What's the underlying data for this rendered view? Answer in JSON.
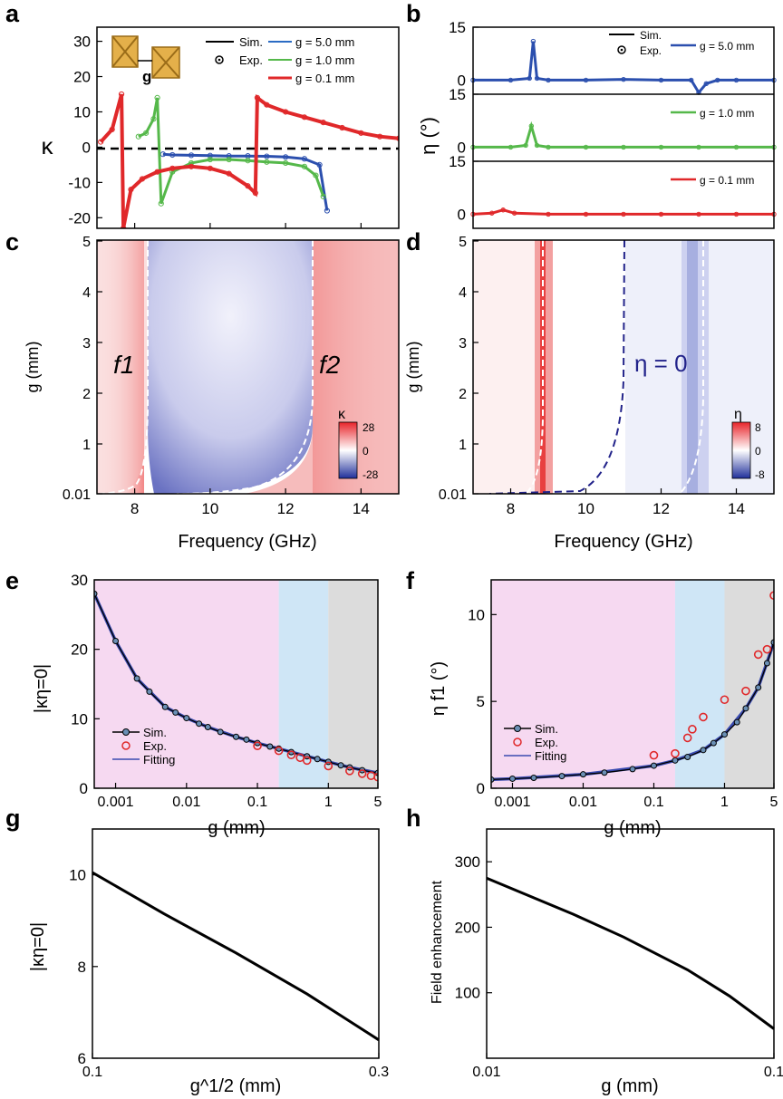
{
  "figure": {
    "panel_letters": [
      "a",
      "b",
      "c",
      "d",
      "e",
      "f",
      "g",
      "h"
    ]
  },
  "chart_data": [
    {
      "panel": "a",
      "type": "line",
      "xlabel": "",
      "ylabel": "κ",
      "xlim": [
        7,
        15
      ],
      "ylim": [
        -23,
        34
      ],
      "yticks": [
        -20,
        -10,
        0,
        10,
        20,
        30
      ],
      "legend": {
        "position": "top-right",
        "items": [
          "Sim.",
          "Exp.",
          "g = 5.0 mm",
          "g = 1.0 mm",
          "g = 0.1 mm"
        ]
      },
      "reference_line": {
        "y": 0,
        "style": "dashed"
      },
      "inset": {
        "label": "g",
        "description_kind": "two-unit-cells-with-gap"
      },
      "series": [
        {
          "name": "g = 5.0 mm",
          "color": "#2b4fae",
          "x": [
            8.75,
            9,
            9.5,
            10,
            10.5,
            11,
            11.5,
            12,
            12.5,
            12.9,
            13.1
          ],
          "y": [
            -2,
            -2.2,
            -2.3,
            -2.4,
            -2.5,
            -2.5,
            -2.6,
            -2.8,
            -3.3,
            -5,
            -18
          ]
        },
        {
          "name": "g = 1.0 mm",
          "color": "#55b84a",
          "x": [
            8.1,
            8.3,
            8.5,
            8.6,
            8.7,
            9,
            9.5,
            10,
            10.5,
            11,
            11.5,
            12,
            12.5,
            12.8,
            13.0
          ],
          "y": [
            3,
            4,
            8,
            14,
            -16,
            -7,
            -4.5,
            -3.5,
            -3.5,
            -3.8,
            -4.2,
            -4.5,
            -5.5,
            -8,
            -14
          ]
        },
        {
          "name": "g = 0.1 mm",
          "color": "#e0282a",
          "x": [
            7.1,
            7.4,
            7.65,
            7.7,
            7.9,
            8.2,
            8.6,
            9,
            9.5,
            10,
            10.5,
            11,
            11.2,
            11.25,
            11.5,
            12,
            12.5,
            13,
            13.5,
            14,
            14.5,
            15
          ],
          "y": [
            1.5,
            5,
            15,
            -23,
            -12,
            -9,
            -7,
            -6,
            -5.5,
            -6,
            -7.5,
            -11,
            -13,
            14,
            12,
            10,
            8.5,
            7,
            5.5,
            4,
            3,
            2.5
          ]
        }
      ]
    },
    {
      "panel": "b",
      "type": "line",
      "xlabel": "",
      "ylabel": "η (°)",
      "xlim": [
        7,
        15
      ],
      "subplots": [
        {
          "ylim": [
            -4,
            15
          ],
          "yticks": [
            0,
            15
          ],
          "series": [
            {
              "name": "g = 5.0 mm",
              "color": "#2b4fae",
              "x": [
                7,
                8,
                8.5,
                8.6,
                8.7,
                9,
                10,
                11,
                12,
                12.8,
                13.0,
                13.2,
                13.5,
                14,
                15
              ],
              "y": [
                0,
                0,
                0.5,
                11,
                0.5,
                0,
                0,
                0.2,
                0,
                0,
                -3.5,
                -1,
                0,
                0,
                0
              ]
            }
          ]
        },
        {
          "ylim": [
            -4,
            15
          ],
          "yticks": [
            0,
            15
          ],
          "series": [
            {
              "name": "g = 1.0 mm",
              "color": "#55b84a",
              "x": [
                7,
                8,
                8.4,
                8.55,
                8.7,
                9,
                10,
                11,
                12,
                13,
                14,
                15
              ],
              "y": [
                0,
                0,
                0.5,
                6,
                0.5,
                0,
                0,
                0,
                0,
                0,
                0,
                0
              ]
            }
          ]
        },
        {
          "ylim": [
            -4,
            15
          ],
          "yticks": [
            0,
            15
          ],
          "series": [
            {
              "name": "g = 0.1 mm",
              "color": "#e0282a",
              "x": [
                7,
                7.5,
                7.8,
                8.1,
                9,
                10,
                11,
                12,
                13,
                14,
                15
              ],
              "y": [
                0,
                0.3,
                1.2,
                0.3,
                0,
                0,
                0,
                0,
                0,
                0,
                0
              ]
            }
          ]
        }
      ],
      "legend": {
        "position": "top-right",
        "items": [
          "Sim.",
          "Exp."
        ]
      }
    },
    {
      "panel": "c",
      "type": "heatmap",
      "xlabel": "Frequency (GHz)",
      "ylabel": "g (mm)",
      "xlim": [
        7,
        15
      ],
      "xticks": [
        8,
        10,
        12,
        14
      ],
      "yticks": [
        "0.01",
        "1",
        "2",
        "3",
        "4",
        "5"
      ],
      "colorbar": {
        "label": "κ",
        "max": 28,
        "mid": 0,
        "min": -28
      },
      "annotations": [
        "f1",
        "f2"
      ]
    },
    {
      "panel": "d",
      "type": "heatmap",
      "xlabel": "Frequency (GHz)",
      "ylabel": "g (mm)",
      "xlim": [
        7,
        15
      ],
      "xticks": [
        8,
        10,
        12,
        14
      ],
      "yticks": [
        "0.01",
        "1",
        "2",
        "3",
        "4",
        "5"
      ],
      "colorbar": {
        "label": "η",
        "max": 8,
        "mid": 0,
        "min": -8
      },
      "annotations": [
        "η = 0"
      ]
    },
    {
      "panel": "e",
      "type": "scatter",
      "xscale": "log",
      "xlabel": "g (mm)",
      "ylabel": "|κη=0|",
      "xlim": [
        0.0005,
        5
      ],
      "ylim": [
        0,
        30
      ],
      "xticks": [
        "0.001",
        "0.01",
        "0.1",
        "1",
        "5"
      ],
      "yticks": [
        0,
        10,
        20,
        30
      ],
      "shaded_regions": [
        {
          "from": 0.0005,
          "to": 0.2,
          "color": "#f6d9f1"
        },
        {
          "from": 0.2,
          "to": 1,
          "color": "#cfe6f6"
        },
        {
          "from": 1,
          "to": 5,
          "color": "#dcdcdc"
        }
      ],
      "legend": {
        "position": "bottom-left",
        "items": [
          "Sim.",
          "Exp.",
          "Fitting"
        ]
      },
      "series": [
        {
          "name": "Sim.",
          "x": [
            0.0005,
            0.001,
            0.002,
            0.003,
            0.005,
            0.007,
            0.01,
            0.015,
            0.02,
            0.03,
            0.05,
            0.07,
            0.1,
            0.15,
            0.2,
            0.3,
            0.5,
            0.7,
            1,
            1.5,
            2,
            3,
            5
          ],
          "y": [
            28,
            21.2,
            15.8,
            13.9,
            11.7,
            10.9,
            10.1,
            9.3,
            8.8,
            8.1,
            7.4,
            7,
            6.5,
            6,
            5.7,
            5.2,
            4.6,
            4.2,
            3.8,
            3.3,
            3,
            2.6,
            2.2
          ]
        },
        {
          "name": "Exp.",
          "x": [
            0.1,
            0.2,
            0.3,
            0.4,
            0.5,
            1,
            2,
            3,
            4,
            5
          ],
          "y": [
            6.1,
            5.4,
            4.8,
            4.4,
            4.0,
            3.2,
            2.5,
            2.1,
            1.8,
            1.6
          ]
        },
        {
          "name": "Fitting",
          "x": [
            0.0005,
            0.001,
            0.002,
            0.005,
            0.01,
            0.02,
            0.05,
            0.1,
            0.2,
            0.5,
            1,
            2,
            5
          ],
          "y": [
            28,
            21.2,
            15.8,
            11.7,
            10.1,
            8.8,
            7.4,
            6.5,
            5.7,
            4.6,
            3.8,
            3,
            2.2
          ]
        }
      ]
    },
    {
      "panel": "f",
      "type": "scatter",
      "xscale": "log",
      "xlabel": "g (mm)",
      "ylabel": "η f1 (°)",
      "xlim": [
        0.0005,
        5
      ],
      "ylim": [
        0,
        12
      ],
      "xticks": [
        "0.001",
        "0.01",
        "0.1",
        "1",
        "5"
      ],
      "yticks": [
        0,
        5,
        10
      ],
      "shaded_regions": [
        {
          "from": 0.0005,
          "to": 0.2,
          "color": "#f6d9f1"
        },
        {
          "from": 0.2,
          "to": 1,
          "color": "#cfe6f6"
        },
        {
          "from": 1,
          "to": 5,
          "color": "#dcdcdc"
        }
      ],
      "legend": {
        "position": "center-left",
        "items": [
          "Sim.",
          "Exp.",
          "Fitting"
        ]
      },
      "series": [
        {
          "name": "Sim.",
          "x": [
            0.0005,
            0.001,
            0.002,
            0.005,
            0.01,
            0.02,
            0.05,
            0.1,
            0.2,
            0.3,
            0.5,
            0.7,
            1,
            1.5,
            2,
            3,
            4,
            5
          ],
          "y": [
            0.5,
            0.55,
            0.6,
            0.7,
            0.8,
            0.9,
            1.1,
            1.3,
            1.6,
            1.8,
            2.2,
            2.6,
            3.1,
            3.8,
            4.6,
            5.8,
            7.2,
            8.4
          ]
        },
        {
          "name": "Exp.",
          "x": [
            0.1,
            0.2,
            0.3,
            0.35,
            0.5,
            1,
            2,
            3,
            4,
            5
          ],
          "y": [
            1.9,
            2.0,
            2.9,
            3.4,
            4.1,
            5.1,
            5.6,
            7.7,
            8.0,
            11.1
          ]
        },
        {
          "name": "Fitting",
          "x": [
            0.0005,
            0.001,
            0.01,
            0.1,
            0.2,
            0.5,
            1,
            2,
            3,
            5
          ],
          "y": [
            0.5,
            0.55,
            0.8,
            1.3,
            1.6,
            2.2,
            3.1,
            4.6,
            5.8,
            8.4
          ]
        }
      ]
    },
    {
      "panel": "g",
      "type": "line",
      "xlabel": "g^1/2 (mm)",
      "ylabel": "|κη=0|",
      "xlim": [
        0.1,
        0.3
      ],
      "ylim": [
        6,
        11
      ],
      "xticks": [
        "0.1",
        "0.3"
      ],
      "yticks": [
        6,
        8,
        10
      ],
      "series": [
        {
          "x": [
            0.1,
            0.15,
            0.2,
            0.25,
            0.3
          ],
          "y": [
            10.05,
            9.15,
            8.3,
            7.4,
            6.4
          ]
        }
      ]
    },
    {
      "panel": "h",
      "type": "line",
      "xscale": "log",
      "xlabel": "g (mm)",
      "ylabel": "Field enhancement",
      "xlim": [
        0.01,
        0.1
      ],
      "ylim": [
        0,
        350
      ],
      "xticks": [
        "0.01",
        "0.1"
      ],
      "yticks": [
        100,
        200,
        300
      ],
      "series": [
        {
          "x": [
            0.01,
            0.02,
            0.03,
            0.05,
            0.07,
            0.1
          ],
          "y": [
            275,
            220,
            185,
            135,
            95,
            45
          ]
        }
      ]
    }
  ]
}
